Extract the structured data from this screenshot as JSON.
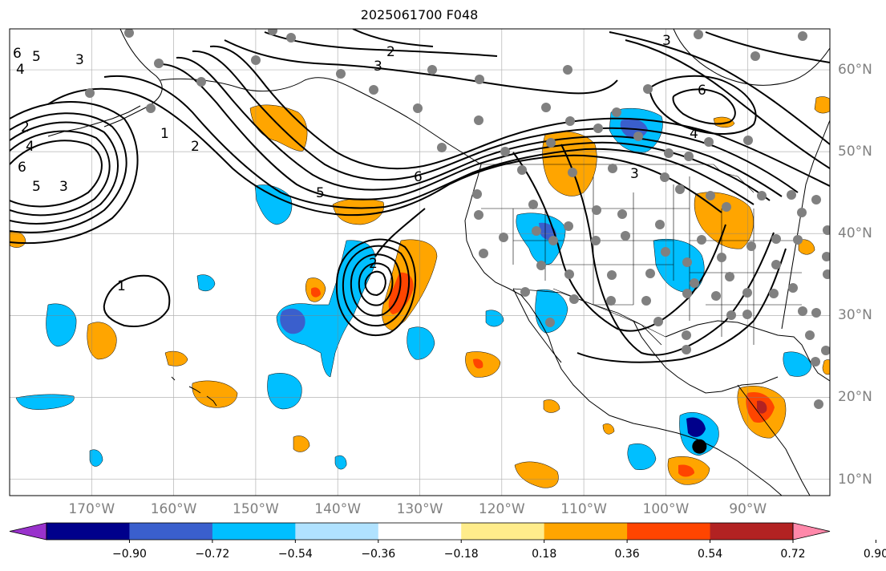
{
  "title": "2025061700 F048",
  "map": {
    "projection": "PlateCarree",
    "extent_lon": [
      -180,
      -80
    ],
    "extent_lat": [
      8,
      65
    ],
    "lon_ticks": [
      {
        "value": -170,
        "label": "170°W"
      },
      {
        "value": -160,
        "label": "160°W"
      },
      {
        "value": -150,
        "label": "150°W"
      },
      {
        "value": -140,
        "label": "140°W"
      },
      {
        "value": -130,
        "label": "130°W"
      },
      {
        "value": -120,
        "label": "120°W"
      },
      {
        "value": -110,
        "label": "110°W"
      },
      {
        "value": -100,
        "label": "100°W"
      },
      {
        "value": -90,
        "label": "90°W"
      }
    ],
    "lat_ticks": [
      {
        "value": 60,
        "label": "60°N"
      },
      {
        "value": 50,
        "label": "50°N"
      },
      {
        "value": 40,
        "label": "40°N"
      },
      {
        "value": 30,
        "label": "30°N"
      },
      {
        "value": 20,
        "label": "20°N"
      },
      {
        "value": 10,
        "label": "10°N"
      }
    ],
    "grid": true,
    "grid_color": "#808080",
    "coastline_color": "#000000",
    "contour_color": "#000000",
    "station_color": "#808080",
    "contour_labels": [
      "1",
      "2",
      "3",
      "4",
      "5",
      "6"
    ]
  },
  "colorbar": {
    "extend": "both",
    "colors": [
      "#9932CC",
      "#00008B",
      "#3A5FCD",
      "#00BFFF",
      "#B0E2FF",
      "#FFFFFF",
      "#FFEC8B",
      "#FFA500",
      "#FF4500",
      "#B22222",
      "#FF88AA"
    ],
    "levels": [
      -0.9,
      -0.72,
      -0.54,
      -0.36,
      -0.18,
      0.18,
      0.36,
      0.54,
      0.72,
      0.9
    ],
    "tick_labels": [
      "−0.90",
      "−0.72",
      "−0.54",
      "−0.36",
      "−0.18",
      "0.18",
      "0.36",
      "0.54",
      "0.72",
      "0.90"
    ]
  },
  "marked_point": {
    "lon": -96,
    "lat": 14
  }
}
